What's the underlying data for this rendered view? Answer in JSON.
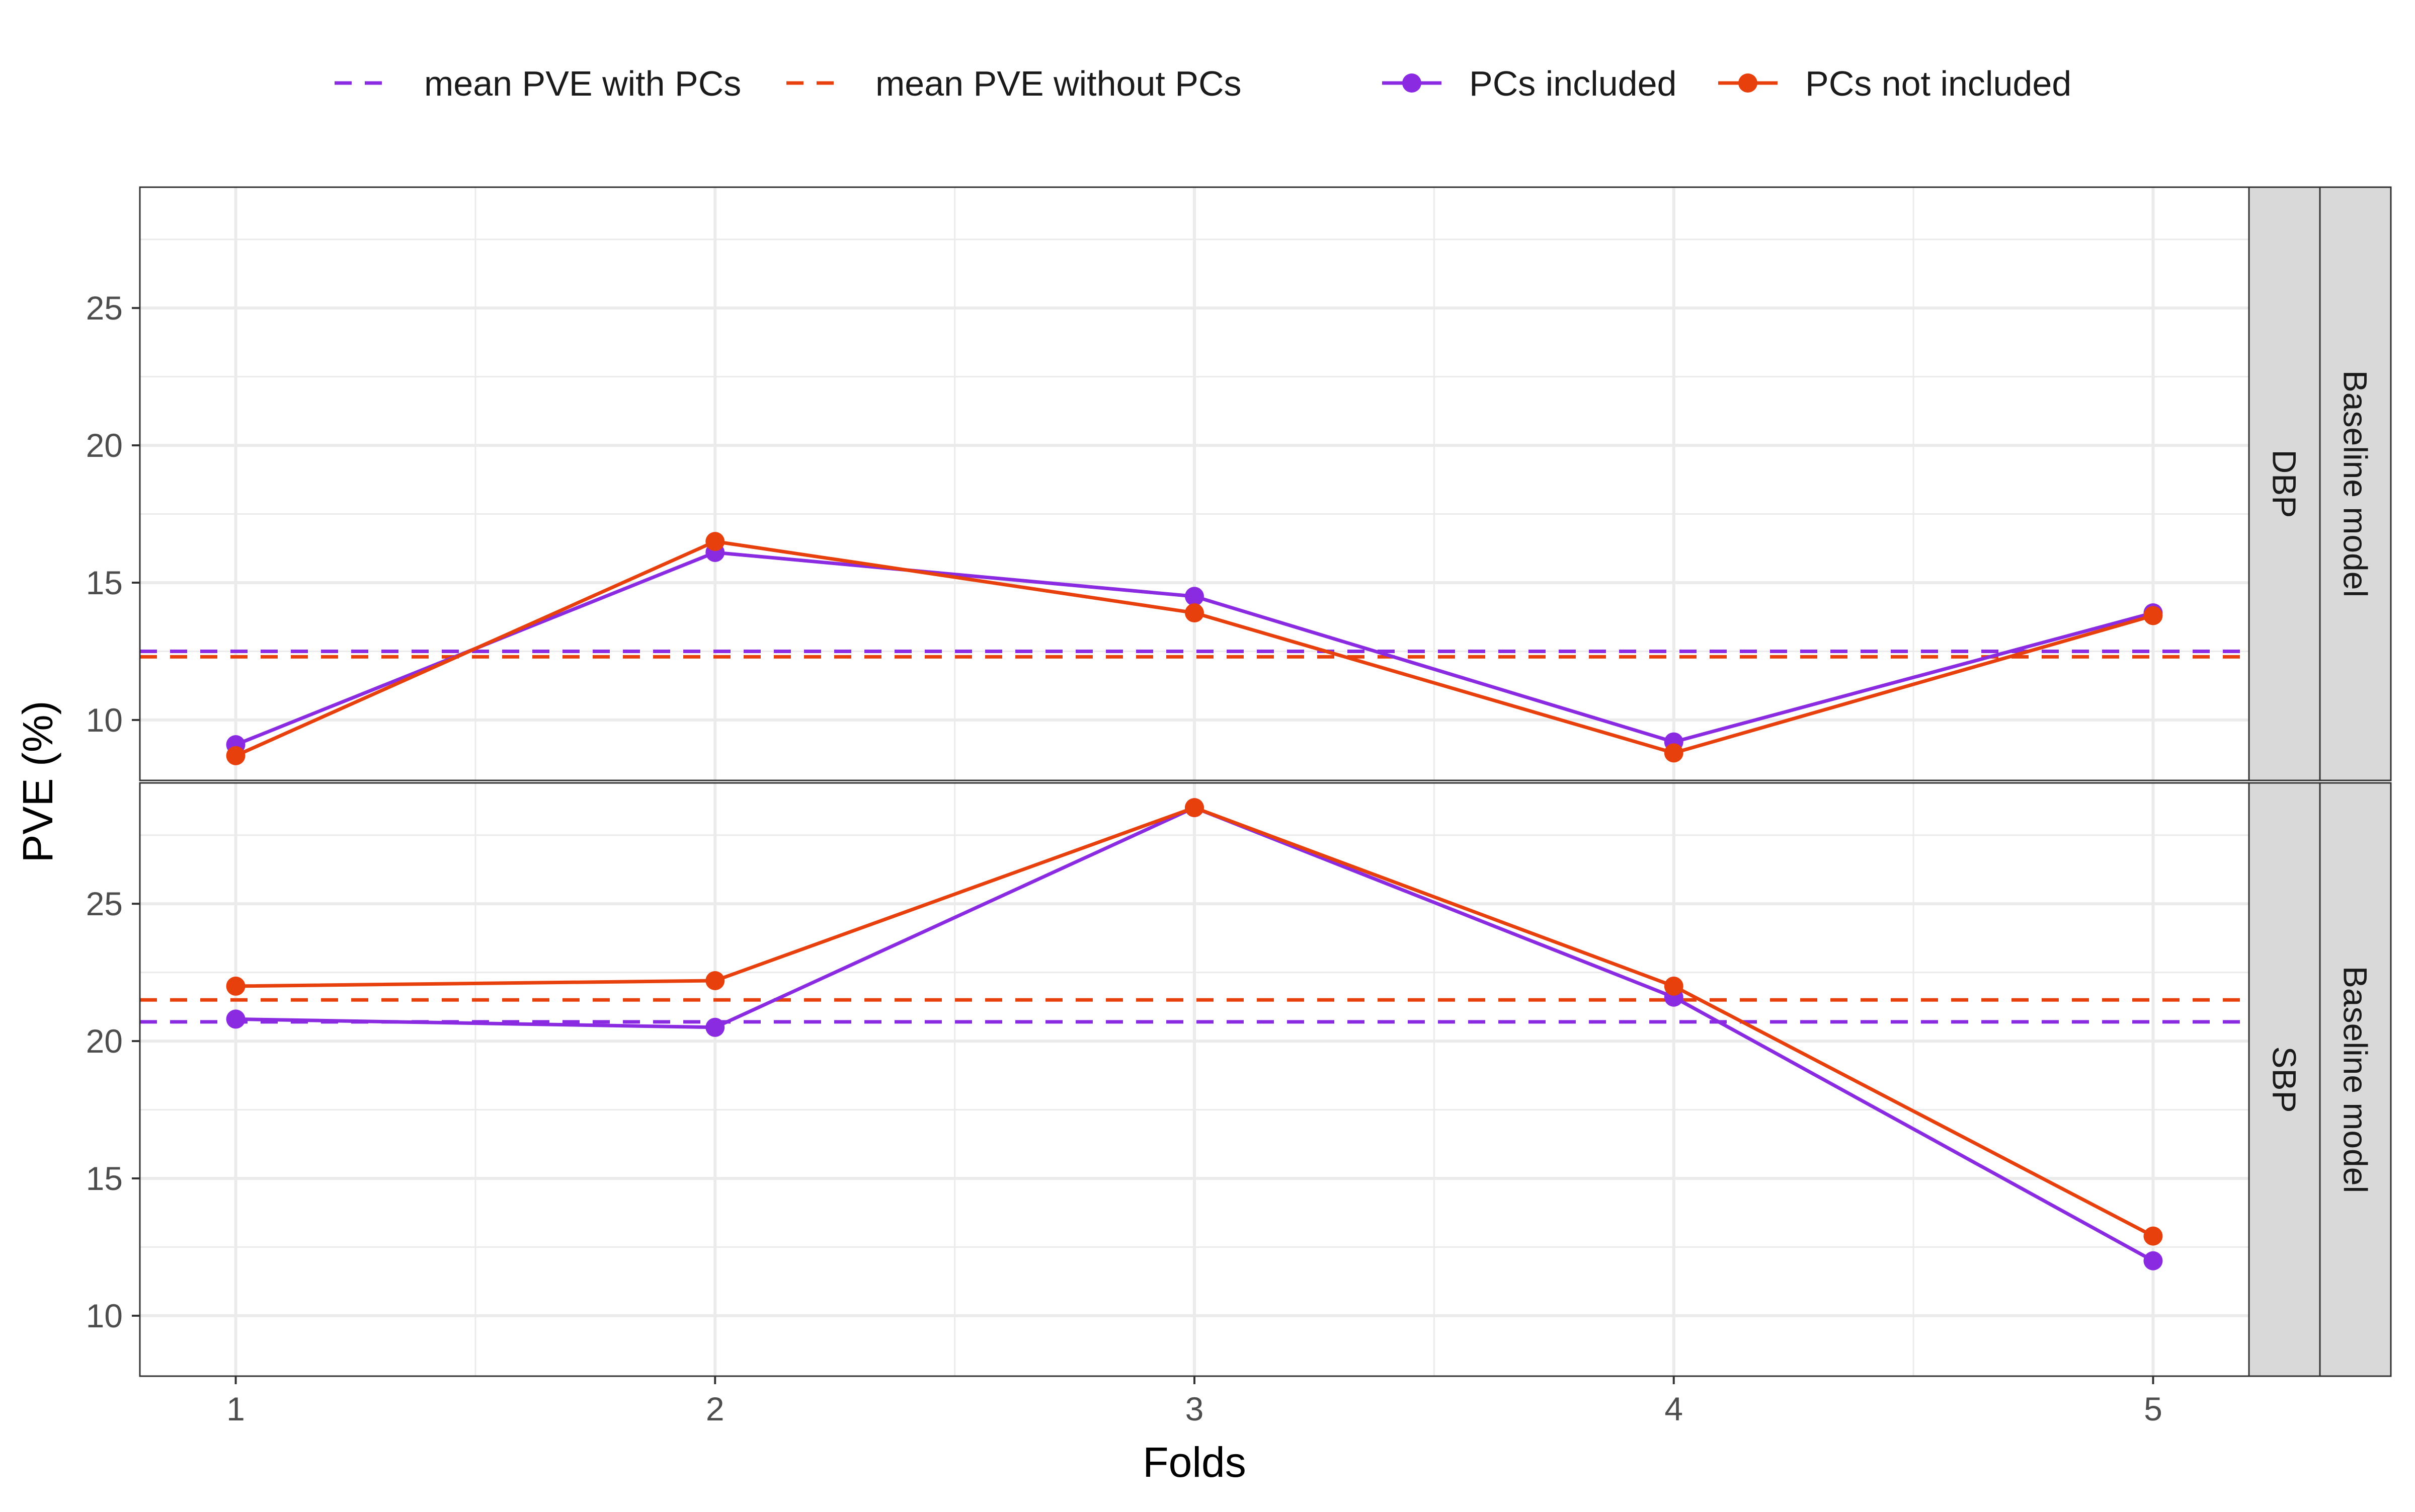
{
  "chart_data": {
    "type": "line",
    "xlabel": "Folds",
    "ylabel": "PVE (%)",
    "x": [
      1,
      2,
      3,
      4,
      5
    ],
    "xlim": [
      0.8,
      5.2
    ],
    "yticks": [
      10,
      15,
      20,
      25
    ],
    "grid": true,
    "legend_position": "top",
    "legend": {
      "mean_lines": [
        {
          "label": "mean PVE with PCs",
          "color": "#8a2be2",
          "style": "dashed"
        },
        {
          "label": "mean PVE without PCs",
          "color": "#e8400c",
          "style": "dashed"
        }
      ],
      "series": [
        {
          "label": "PCs included",
          "color": "#8a2be2"
        },
        {
          "label": "PCs not included",
          "color": "#e8400c"
        }
      ]
    },
    "outer_strip": "Baseline model",
    "panels": [
      {
        "strip": "DBP",
        "ylim": [
          7.8,
          29.4
        ],
        "series": [
          {
            "name": "PCs included",
            "color": "#8a2be2",
            "values": [
              9.1,
              16.1,
              14.5,
              9.2,
              13.9
            ]
          },
          {
            "name": "PCs not included",
            "color": "#e8400c",
            "values": [
              8.7,
              16.5,
              13.9,
              8.8,
              13.8
            ]
          }
        ],
        "means": [
          {
            "name": "mean PVE with PCs",
            "color": "#8a2be2",
            "value": 12.5
          },
          {
            "name": "mean PVE without PCs",
            "color": "#e8400c",
            "value": 12.3
          }
        ]
      },
      {
        "strip": "SBP",
        "ylim": [
          7.8,
          29.4
        ],
        "series": [
          {
            "name": "PCs included",
            "color": "#8a2be2",
            "values": [
              20.8,
              20.5,
              28.5,
              21.6,
              12.0
            ]
          },
          {
            "name": "PCs not included",
            "color": "#e8400c",
            "values": [
              22.0,
              22.2,
              28.5,
              22.0,
              12.9
            ]
          }
        ],
        "means": [
          {
            "name": "mean PVE with PCs",
            "color": "#8a2be2",
            "value": 20.7
          },
          {
            "name": "mean PVE without PCs",
            "color": "#e8400c",
            "value": 21.5
          }
        ]
      }
    ]
  }
}
